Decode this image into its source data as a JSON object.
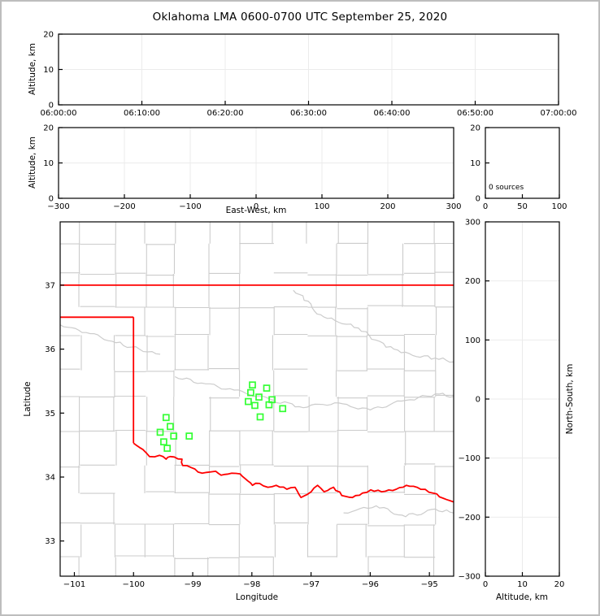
{
  "title": "Oklahoma LMA 0600-0700 UTC September 25, 2020",
  "colors": {
    "axes": "#000000",
    "grid": "#ebebeb",
    "county": "#cccccc",
    "state_border": "#ff0000",
    "stations": "#33ff33",
    "frame": "#bdbdbd"
  },
  "chart_data": [
    {
      "id": "time_height",
      "type": "scatter",
      "ylabel": "Altitude, km",
      "xlim": [
        0,
        3600
      ],
      "ylim": [
        0,
        20
      ],
      "grid": true,
      "xticks": {
        "values": [
          0,
          600,
          1200,
          1800,
          2400,
          3000,
          3600
        ],
        "labels": [
          "06:00:00",
          "06:10:00",
          "06:20:00",
          "06:30:00",
          "06:40:00",
          "06:50:00",
          "07:00:00"
        ]
      },
      "yticks": {
        "values": [
          0,
          10,
          20
        ],
        "labels": [
          "0",
          "10",
          "20"
        ]
      },
      "points": []
    },
    {
      "id": "ew_height",
      "type": "scatter",
      "xlabel": "East-West, km",
      "ylabel": "Altitude, km",
      "xlim": [
        -300,
        300
      ],
      "ylim": [
        0,
        20
      ],
      "grid": true,
      "xticks": {
        "values": [
          -300,
          -200,
          -100,
          0,
          100,
          200,
          300
        ],
        "labels": [
          "−300",
          "−200",
          "−100",
          "0",
          "100",
          "200",
          "300"
        ]
      },
      "yticks": {
        "values": [
          0,
          10,
          20
        ],
        "labels": [
          "0",
          "10",
          "20"
        ]
      },
      "points": []
    },
    {
      "id": "alt_histogram",
      "type": "histogram",
      "annotation": "0 sources",
      "xlim": [
        0,
        100
      ],
      "ylim": [
        0,
        20
      ],
      "grid": false,
      "xticks": {
        "values": [
          0,
          50,
          100
        ],
        "labels": [
          "0",
          "50",
          "100"
        ]
      },
      "yticks": {
        "values": [
          0,
          10,
          20
        ],
        "labels": [
          "0",
          "10",
          "20"
        ]
      },
      "points": []
    },
    {
      "id": "plan_map",
      "type": "map-scatter",
      "xlabel": "Longitude",
      "ylabel": "Latitude",
      "xlim": [
        -101.24,
        -94.59
      ],
      "ylim": [
        32.45,
        37.99
      ],
      "grid": false,
      "xticks": {
        "values": [
          -101,
          -100,
          -99,
          -98,
          -97,
          -96,
          -95
        ],
        "labels": [
          "−101",
          "−100",
          "−99",
          "−98",
          "−97",
          "−96",
          "−95"
        ]
      },
      "yticks": {
        "values": [
          33,
          34,
          35,
          36,
          37
        ],
        "labels": [
          "33",
          "34",
          "35",
          "36",
          "37"
        ]
      },
      "sources": [],
      "stations": [
        [
          -99.45,
          34.93
        ],
        [
          -99.38,
          34.79
        ],
        [
          -99.55,
          34.7
        ],
        [
          -99.32,
          34.64
        ],
        [
          -99.06,
          34.64
        ],
        [
          -99.49,
          34.55
        ],
        [
          -99.43,
          34.45
        ],
        [
          -97.99,
          35.44
        ],
        [
          -97.75,
          35.39
        ],
        [
          -98.02,
          35.32
        ],
        [
          -97.88,
          35.25
        ],
        [
          -98.06,
          35.18
        ],
        [
          -97.66,
          35.21
        ],
        [
          -97.95,
          35.12
        ],
        [
          -97.71,
          35.13
        ],
        [
          -97.48,
          35.07
        ],
        [
          -97.86,
          34.94
        ]
      ],
      "state_border": [
        [
          [
            -101.24,
            37.0
          ],
          [
            -94.59,
            37.0
          ]
        ],
        [
          [
            -101.24,
            36.5
          ],
          [
            -100.0,
            36.5
          ]
        ],
        [
          [
            -100.0,
            36.5
          ],
          [
            -100.0,
            34.53
          ]
        ],
        [
          [
            -100.0,
            34.53
          ],
          [
            -99.84,
            34.43
          ],
          [
            -99.73,
            34.32
          ],
          [
            -99.56,
            34.34
          ],
          [
            -99.45,
            34.28
          ],
          [
            -99.38,
            34.32
          ],
          [
            -99.18,
            34.28
          ],
          [
            -99.17,
            34.18
          ],
          [
            -99.03,
            34.15
          ],
          [
            -98.84,
            34.06
          ],
          [
            -98.61,
            34.09
          ],
          [
            -98.52,
            34.03
          ],
          [
            -98.34,
            34.06
          ],
          [
            -98.2,
            34.05
          ],
          [
            -98.07,
            33.94
          ],
          [
            -97.99,
            33.87
          ],
          [
            -97.87,
            33.9
          ],
          [
            -97.73,
            33.84
          ],
          [
            -97.59,
            33.87
          ],
          [
            -97.41,
            33.81
          ],
          [
            -97.27,
            33.84
          ],
          [
            -97.17,
            33.68
          ],
          [
            -97.06,
            33.73
          ],
          [
            -96.89,
            33.87
          ],
          [
            -96.78,
            33.77
          ],
          [
            -96.62,
            33.84
          ],
          [
            -96.48,
            33.71
          ],
          [
            -96.3,
            33.68
          ],
          [
            -96.13,
            33.75
          ],
          [
            -95.99,
            33.8
          ],
          [
            -95.81,
            33.77
          ],
          [
            -95.56,
            33.81
          ],
          [
            -95.39,
            33.87
          ],
          [
            -95.21,
            33.84
          ],
          [
            -94.94,
            33.75
          ],
          [
            -94.77,
            33.67
          ],
          [
            -94.59,
            33.61
          ]
        ]
      ],
      "rivers": [
        [
          [
            -97.3,
            36.92
          ],
          [
            -97.05,
            36.75
          ],
          [
            -96.9,
            36.55
          ],
          [
            -96.6,
            36.45
          ],
          [
            -96.2,
            36.33
          ],
          [
            -95.9,
            36.14
          ],
          [
            -95.6,
            36.0
          ],
          [
            -95.28,
            35.9
          ],
          [
            -94.9,
            35.86
          ],
          [
            -94.59,
            35.8
          ]
        ],
        [
          [
            -99.3,
            35.57
          ],
          [
            -98.85,
            35.47
          ],
          [
            -98.3,
            35.36
          ],
          [
            -97.7,
            35.22
          ],
          [
            -97.2,
            35.1
          ],
          [
            -96.6,
            35.16
          ],
          [
            -96.0,
            35.05
          ],
          [
            -95.4,
            35.2
          ],
          [
            -94.9,
            35.3
          ],
          [
            -94.59,
            35.26
          ]
        ],
        [
          [
            -101.24,
            36.38
          ],
          [
            -100.8,
            36.26
          ],
          [
            -100.3,
            36.1
          ],
          [
            -99.9,
            36.0
          ],
          [
            -99.55,
            35.92
          ]
        ],
        [
          [
            -96.45,
            33.44
          ],
          [
            -95.9,
            33.55
          ],
          [
            -95.4,
            33.38
          ],
          [
            -94.9,
            33.5
          ],
          [
            -94.59,
            33.44
          ]
        ]
      ]
    },
    {
      "id": "ns_height",
      "type": "scatter",
      "xlabel": "Altitude, km",
      "ylabel": "North-South, km",
      "xlim": [
        0,
        20
      ],
      "ylim": [
        -300,
        300
      ],
      "grid": true,
      "xticks": {
        "values": [
          0,
          10,
          20
        ],
        "labels": [
          "0",
          "10",
          "20"
        ]
      },
      "yticks": {
        "values": [
          -300,
          -200,
          -100,
          0,
          100,
          200,
          300
        ],
        "labels": [
          "−300",
          "−200",
          "−100",
          "0",
          "100",
          "200",
          "300"
        ]
      },
      "points": []
    }
  ]
}
